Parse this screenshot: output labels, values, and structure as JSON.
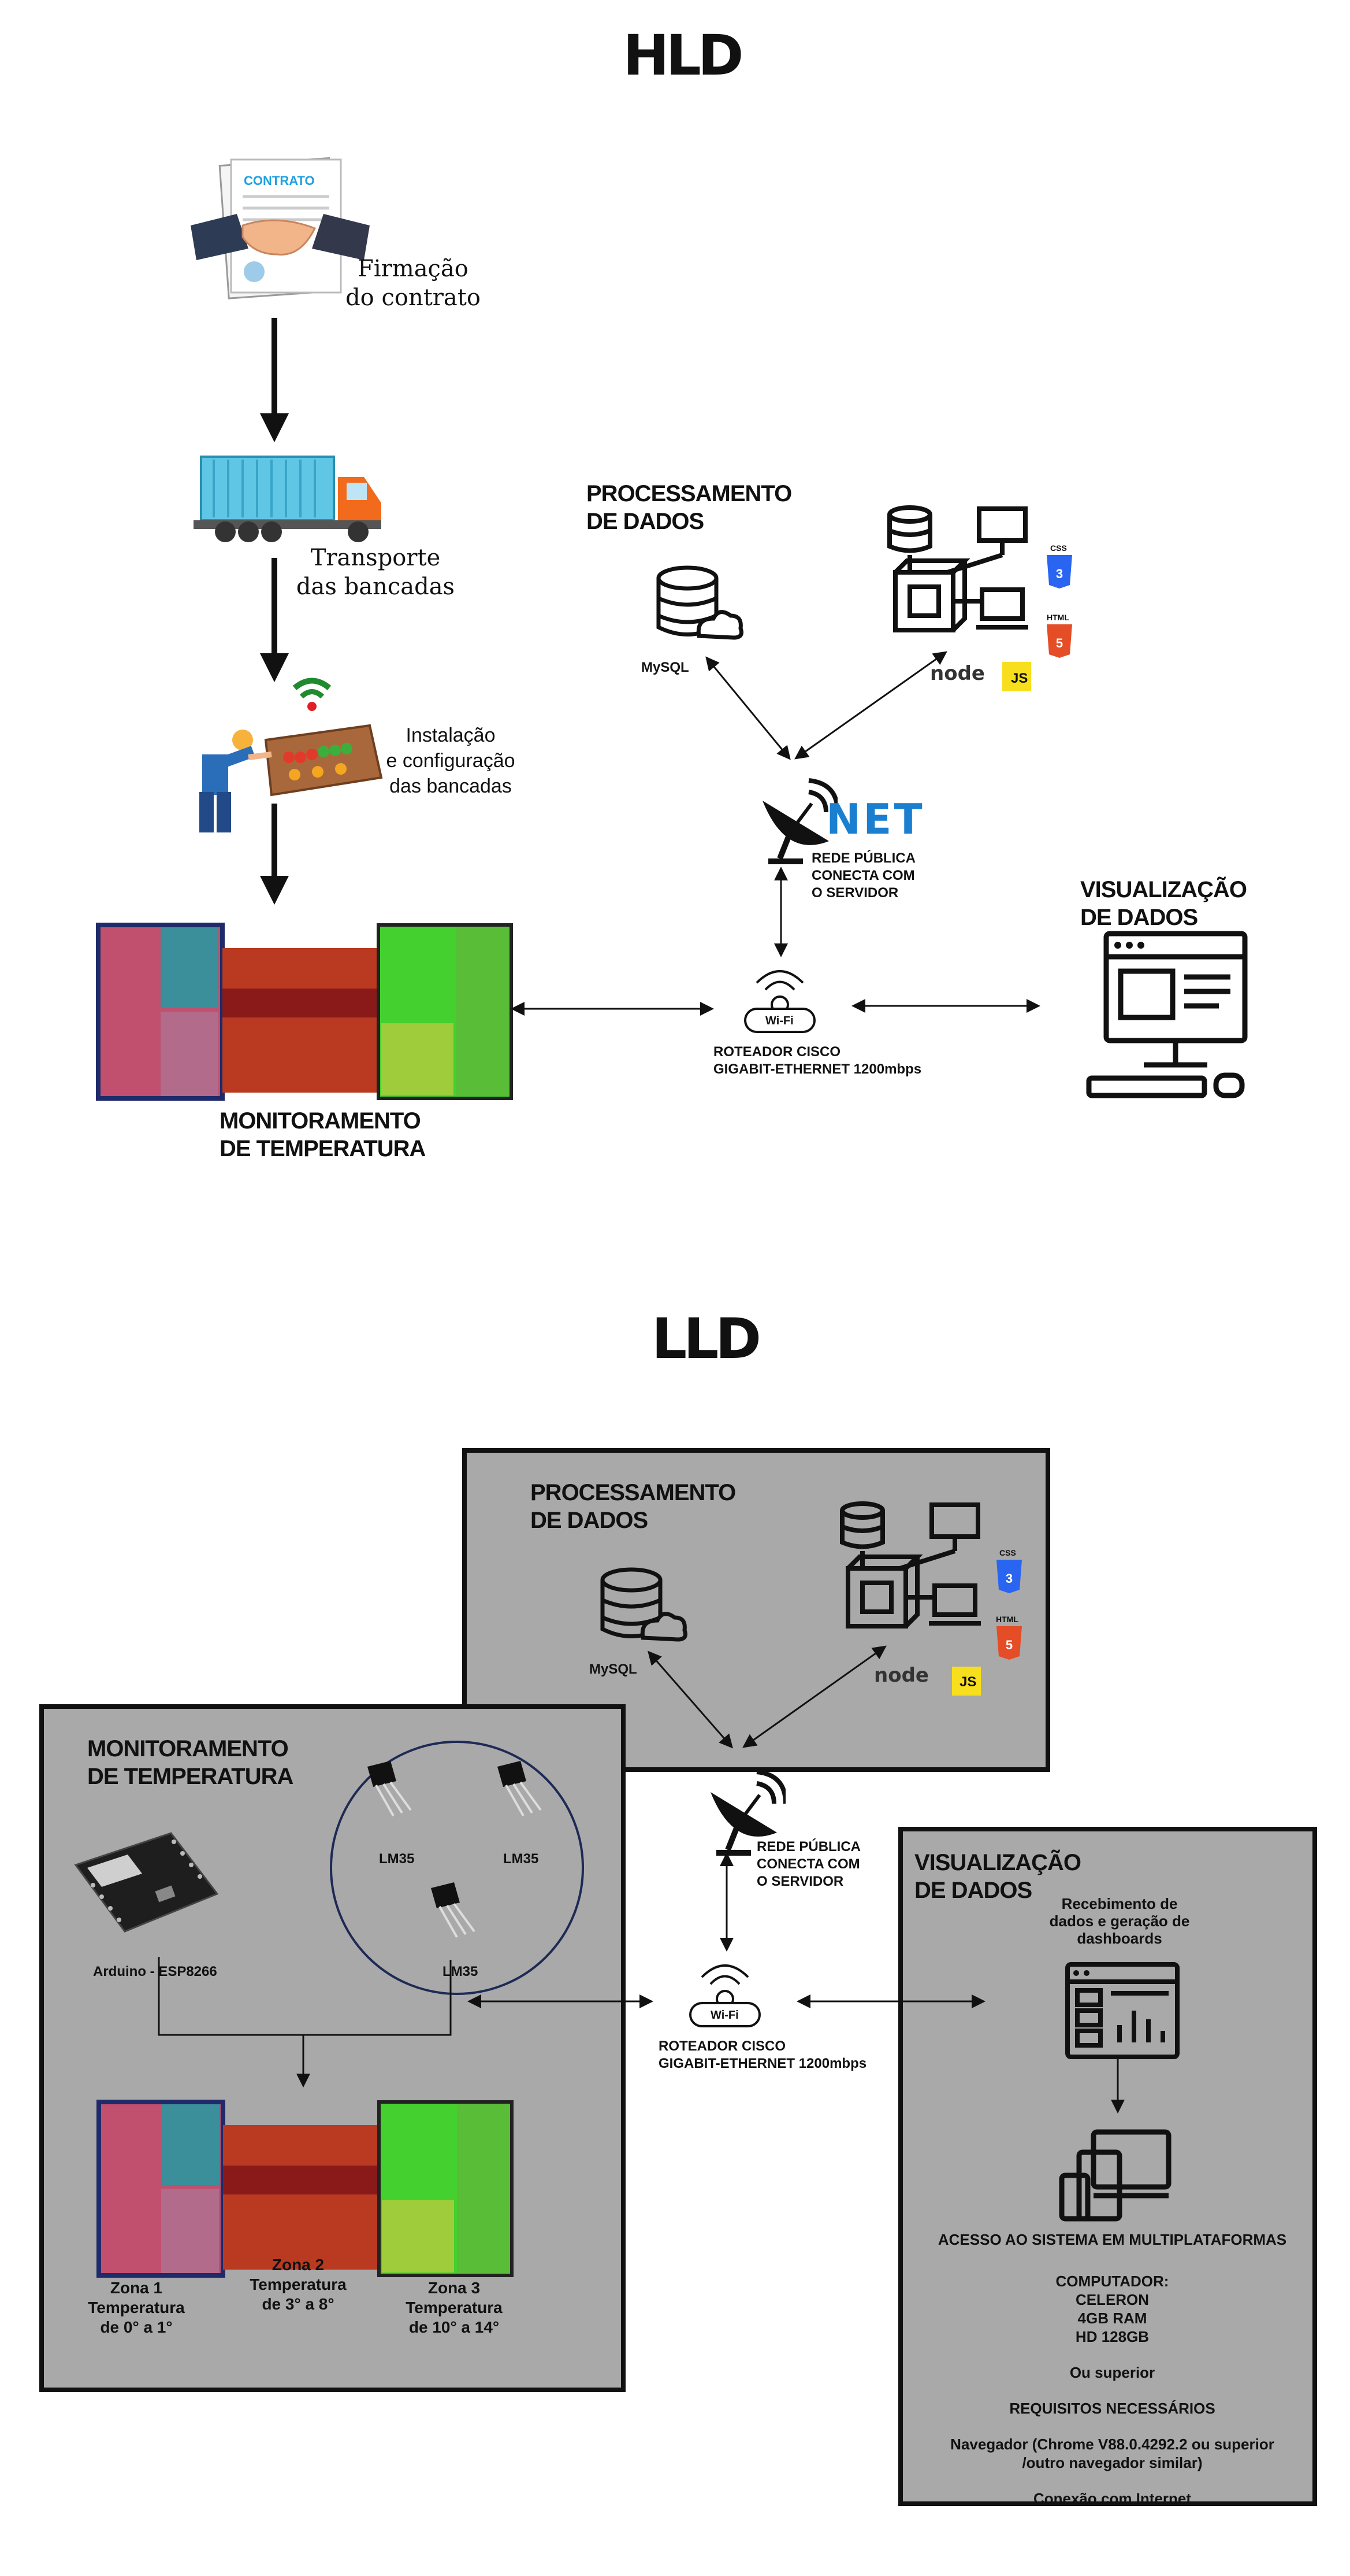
{
  "hld": {
    "title": "HLD",
    "contract": {
      "doc_text": "CONTRATO",
      "caption_line1": "Firmação",
      "caption_line2": "do contrato"
    },
    "transport": {
      "caption_line1": "Transporte",
      "caption_line2": "das bancadas"
    },
    "install": {
      "caption_line1": "Instalação",
      "caption_line2": "e configuração",
      "caption_line3": "das bancadas"
    },
    "monitor": {
      "line1": "MONITORAMENTO",
      "line2": "DE TEMPERATURA"
    },
    "processing": {
      "line1": "PROCESSAMENTO",
      "line2": "DE DADOS",
      "mysql": "MySQL",
      "css": "CSS",
      "html": "HTML",
      "node": "node",
      "js": "JS"
    },
    "network": {
      "brand": "NET",
      "line1": "REDE PÚBLICA",
      "line2": "CONECTA COM",
      "line3": "O SERVIDOR"
    },
    "router": {
      "wifi": "Wi-Fi",
      "line1": "ROTEADOR CISCO",
      "line2": "GIGABIT-ETHERNET 1200mbps"
    },
    "visual": {
      "line1": "VISUALIZAÇÃO",
      "line2": "DE DADOS"
    }
  },
  "lld": {
    "title": "LLD",
    "processing": {
      "line1": "PROCESSAMENTO",
      "line2": "DE DADOS",
      "mysql": "MySQL",
      "css": "CSS",
      "html": "HTML",
      "node": "node",
      "js": "JS"
    },
    "monitor": {
      "line1": "MONITORAMENTO",
      "line2": "DE TEMPERATURA",
      "sensors": [
        "LM35",
        "LM35",
        "LM35"
      ],
      "board": "Arduino - ESP8266",
      "zones": [
        {
          "name": "Zona 1",
          "line2": "Temperatura",
          "line3": "de 0° a 1°"
        },
        {
          "name": "Zona 2",
          "line2": "Temperatura",
          "line3": "de 3° a 8°"
        },
        {
          "name": "Zona 3",
          "line2": "Temperatura",
          "line3": "de 10° a 14°"
        }
      ]
    },
    "network": {
      "line1": "REDE PÚBLICA",
      "line2": "CONECTA COM",
      "line3": "O SERVIDOR"
    },
    "router": {
      "wifi": "Wi-Fi",
      "line1": "ROTEADOR CISCO",
      "line2": "GIGABIT-ETHERNET 1200mbps"
    },
    "visual": {
      "line1": "VISUALIZAÇÃO",
      "line2": "DE DADOS",
      "dash1": "Recebimento de",
      "dash2": "dados e geração de",
      "dash3": "dashboards",
      "access": "ACESSO AO SISTEMA EM MULTIPLATAFORMAS",
      "pc_title": "COMPUTADOR:",
      "pc_cpu": "CELERON",
      "pc_ram": "4GB RAM",
      "pc_hd": "HD 128GB",
      "or_better": "Ou superior",
      "req_title": "REQUISITOS NECESSÁRIOS",
      "browser1": "Navegador (Chrome V88.0.4292.2 ou superior",
      "browser2": "/outro navegador similar)",
      "internet": "Conexão com Internet"
    }
  },
  "colors": {
    "panel": "#a9a9a9",
    "net_blue": "#1a7fd0",
    "css_blue": "#2965f1",
    "html_orange": "#e44d26",
    "js_yellow": "#f7df1e",
    "node_green": "#539e43"
  }
}
